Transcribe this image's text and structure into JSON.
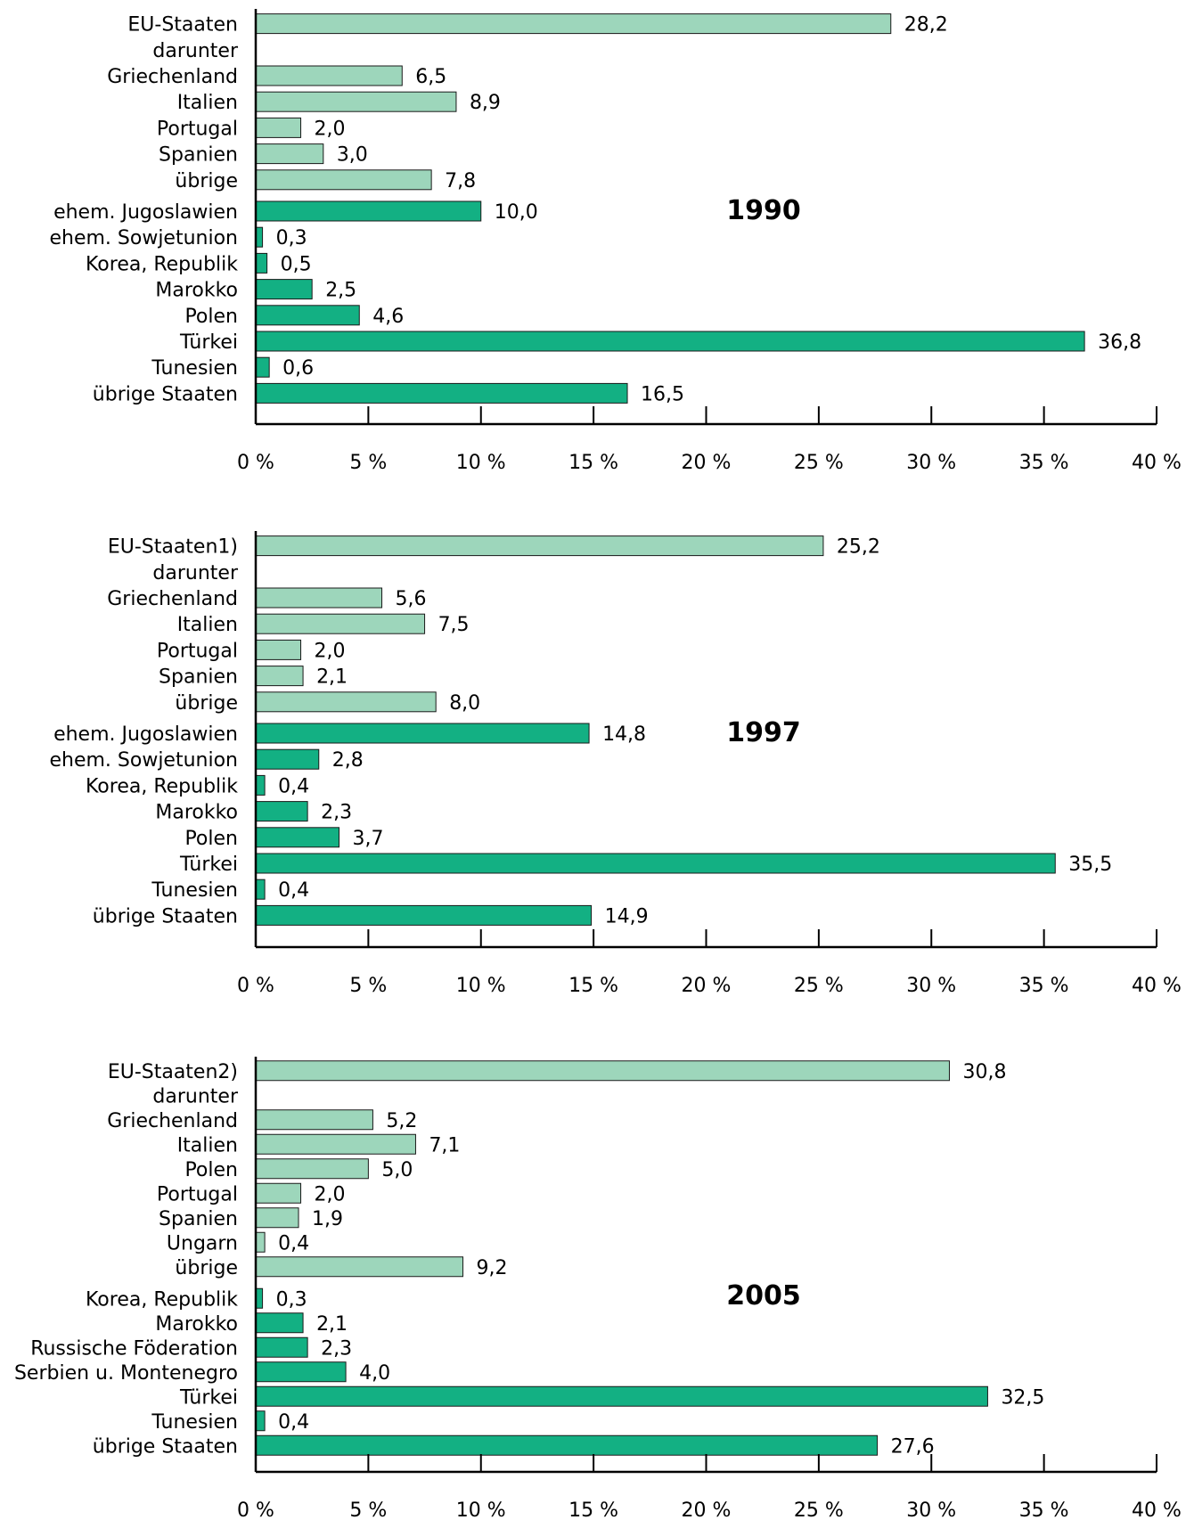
{
  "chart_data": [
    {
      "type": "bar",
      "orientation": "horizontal",
      "title": "1990",
      "categories": [
        "EU-Staaten",
        "darunter",
        "Griechenland",
        "Italien",
        "Portugal",
        "Spanien",
        "übrige",
        "ehem. Jugoslawien",
        "ehem. Sowjetunion",
        "Korea, Republik",
        "Marokko",
        "Polen",
        "Türkei",
        "Tunesien",
        "übrige Staaten"
      ],
      "values": [
        28.2,
        null,
        6.5,
        8.9,
        2.0,
        3.0,
        7.8,
        10.0,
        0.3,
        0.5,
        2.5,
        4.6,
        36.8,
        0.6,
        16.5
      ],
      "value_labels": [
        "28,2",
        "",
        "6,5",
        "8,9",
        "2,0",
        "3,0",
        "7,8",
        "10,0",
        "0,3",
        "0,5",
        "2,5",
        "4,6",
        "36,8",
        "0,6",
        "16,5"
      ],
      "groups": [
        "eu",
        "eu",
        "eu",
        "eu",
        "eu",
        "eu",
        "eu",
        "other",
        "other",
        "other",
        "other",
        "other",
        "other",
        "other",
        "other"
      ],
      "xlim": [
        0,
        40
      ],
      "xticks": [
        0,
        5,
        10,
        15,
        20,
        25,
        30,
        35,
        40
      ],
      "xtick_labels": [
        "0 %",
        "5 %",
        "10 %",
        "15 %",
        "20 %",
        "25 %",
        "30 %",
        "35 %",
        "40 %"
      ],
      "grid": false,
      "legend": "none"
    },
    {
      "type": "bar",
      "orientation": "horizontal",
      "title": "1997",
      "categories": [
        "EU-Staaten1)",
        "darunter",
        "Griechenland",
        "Italien",
        "Portugal",
        "Spanien",
        "übrige",
        "ehem. Jugoslawien",
        "ehem. Sowjetunion",
        "Korea, Republik",
        "Marokko",
        "Polen",
        "Türkei",
        "Tunesien",
        "übrige Staaten"
      ],
      "values": [
        25.2,
        null,
        5.6,
        7.5,
        2.0,
        2.1,
        8.0,
        14.8,
        2.8,
        0.4,
        2.3,
        3.7,
        35.5,
        0.4,
        14.9
      ],
      "value_labels": [
        "25,2",
        "",
        "5,6",
        "7,5",
        "2,0",
        "2,1",
        "8,0",
        "14,8",
        "2,8",
        "0,4",
        "2,3",
        "3,7",
        "35,5",
        "0,4",
        "14,9"
      ],
      "groups": [
        "eu",
        "eu",
        "eu",
        "eu",
        "eu",
        "eu",
        "eu",
        "other",
        "other",
        "other",
        "other",
        "other",
        "other",
        "other",
        "other"
      ],
      "xlim": [
        0,
        40
      ],
      "xticks": [
        0,
        5,
        10,
        15,
        20,
        25,
        30,
        35,
        40
      ],
      "xtick_labels": [
        "0 %",
        "5 %",
        "10 %",
        "15 %",
        "20 %",
        "25 %",
        "30 %",
        "35 %",
        "40 %"
      ],
      "grid": false,
      "legend": "none"
    },
    {
      "type": "bar",
      "orientation": "horizontal",
      "title": "2005",
      "categories": [
        "EU-Staaten2)",
        "darunter",
        "Griechenland",
        "Italien",
        "Polen",
        "Portugal",
        "Spanien",
        "Ungarn",
        "übrige",
        "Korea, Republik",
        "Marokko",
        "Russische Föderation",
        "Serbien u. Montenegro",
        "Türkei",
        "Tunesien",
        "übrige Staaten"
      ],
      "values": [
        30.8,
        null,
        5.2,
        7.1,
        5.0,
        2.0,
        1.9,
        0.4,
        9.2,
        0.3,
        2.1,
        2.3,
        4.0,
        32.5,
        0.4,
        27.6
      ],
      "value_labels": [
        "30,8",
        "",
        "5,2",
        "7,1",
        "5,0",
        "2,0",
        "1,9",
        "0,4",
        "9,2",
        "0,3",
        "2,1",
        "2,3",
        "4,0",
        "32,5",
        "0,4",
        "27,6"
      ],
      "groups": [
        "eu",
        "eu",
        "eu",
        "eu",
        "eu",
        "eu",
        "eu",
        "eu",
        "eu",
        "other",
        "other",
        "other",
        "other",
        "other",
        "other",
        "other"
      ],
      "xlim": [
        0,
        40
      ],
      "xticks": [
        0,
        5,
        10,
        15,
        20,
        25,
        30,
        35,
        40
      ],
      "xtick_labels": [
        "0 %",
        "5 %",
        "10 %",
        "15 %",
        "20 %",
        "25 %",
        "30 %",
        "35 %",
        "40 %"
      ],
      "grid": false,
      "legend": "none"
    }
  ],
  "colors": {
    "eu_bar": "#9dd6bb",
    "other_bar": "#13b083",
    "bar_outline": "#1a1a1a",
    "axis": "#000000"
  }
}
